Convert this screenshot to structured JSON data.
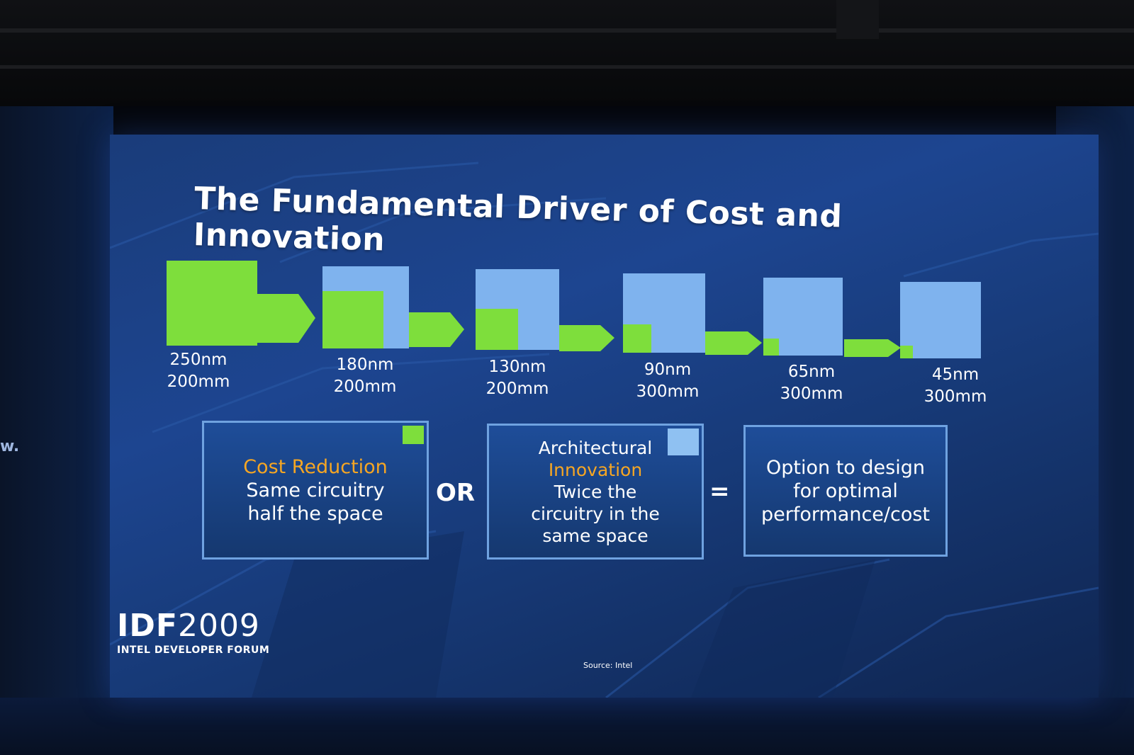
{
  "slide": {
    "title": "The Fundamental Driver of Cost and Innovation",
    "nodes": [
      {
        "node": "250nm",
        "wafer": "200mm",
        "green_fraction": 1.0
      },
      {
        "node": "180nm",
        "wafer": "200mm",
        "green_fraction": 0.7
      },
      {
        "node": "130nm",
        "wafer": "200mm",
        "green_fraction": 0.5
      },
      {
        "node": "90nm",
        "wafer": "300mm",
        "green_fraction": 0.35
      },
      {
        "node": "65nm",
        "wafer": "300mm",
        "green_fraction": 0.2
      },
      {
        "node": "45nm",
        "wafer": "300mm",
        "green_fraction": 0.15
      }
    ],
    "boxes": {
      "cost": {
        "highlight": "Cost Reduction",
        "line1": "Same circuitry",
        "line2": "half the space"
      },
      "or": "OR",
      "innovation": {
        "line1": "Architectural",
        "highlight": "Innovation",
        "line2": "Twice the",
        "line3": "circuitry in the",
        "line4": "same space"
      },
      "equals": "=",
      "option": {
        "line1": "Option to design",
        "line2": "for optimal",
        "line3": "performance/cost"
      }
    },
    "logo": {
      "prefix": "IDF",
      "year": "2009",
      "subtitle": "INTEL DEVELOPER FORUM"
    },
    "source": "Source: Intel"
  },
  "wall_text": "w.",
  "colors": {
    "green": "#7ede3c",
    "light_blue": "#7fb3ee",
    "highlight_orange": "#f6a623",
    "screen_blue": "#1d4590"
  }
}
